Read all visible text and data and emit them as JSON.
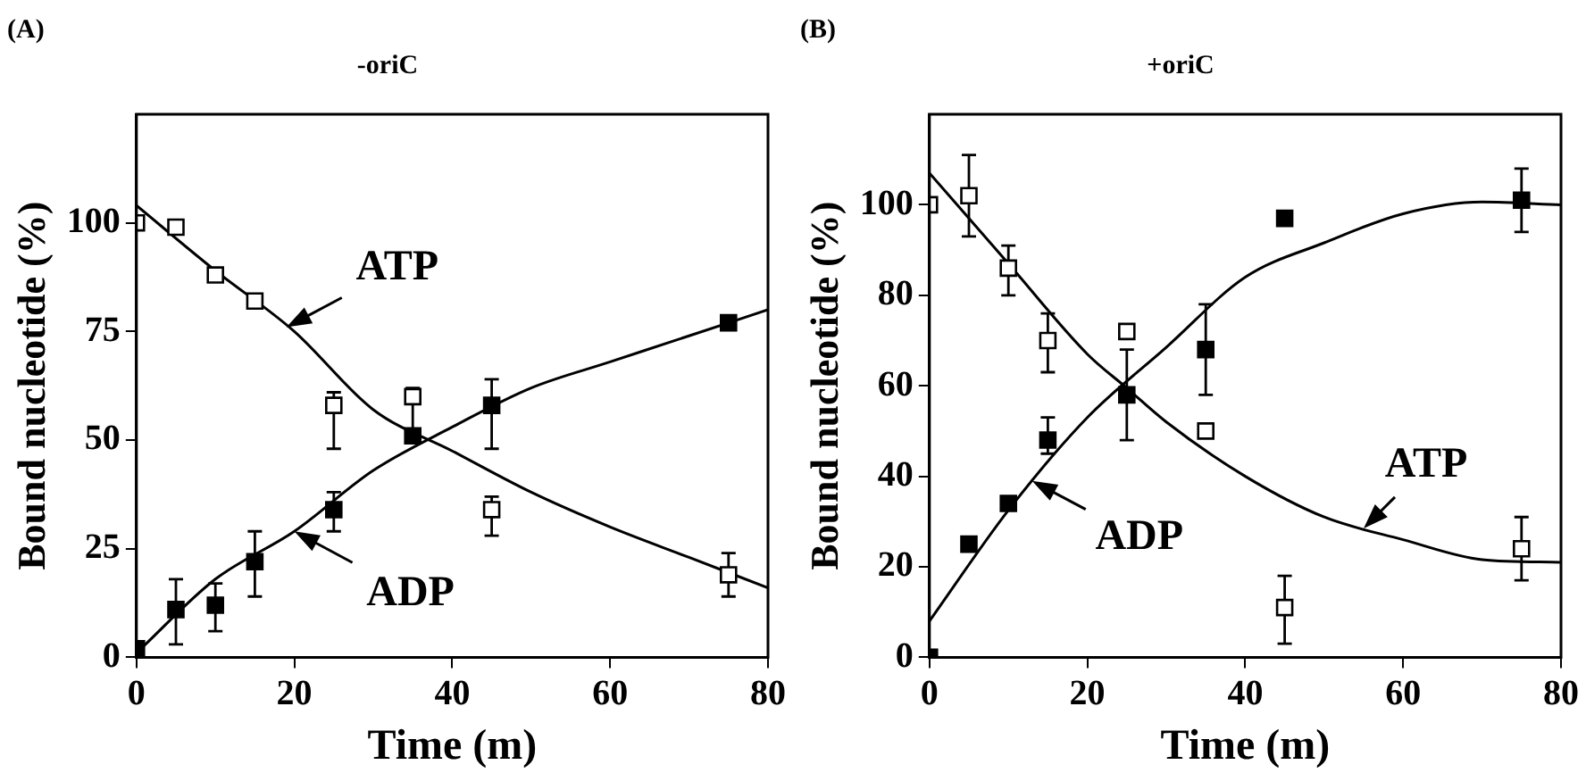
{
  "chart_data": [
    {
      "type": "scatter",
      "title": "(A)",
      "subtitle": "-oriC",
      "xlabel": "Time (m)",
      "ylabel": "Bound nucleotide (%)",
      "xlim": [
        0,
        80
      ],
      "xticks": [
        0,
        20,
        40,
        60,
        80
      ],
      "ylim": [
        0,
        125
      ],
      "yticks": [
        0,
        25,
        50,
        75,
        100
      ],
      "grid": false,
      "legend": false,
      "marker": "square",
      "series": [
        {
          "color": "#ffffff",
          "x": [
            0,
            5,
            10,
            15,
            25,
            35,
            45,
            75
          ],
          "values": [
            100,
            99,
            88,
            82,
            58,
            60,
            34,
            19
          ],
          "errors": [
            null,
            null,
            null,
            null,
            [
              48,
              61
            ],
            [
              50,
              62
            ],
            [
              28,
              37
            ],
            [
              14,
              24
            ]
          ]
        },
        {
          "color": "#000000",
          "x": [
            0,
            5,
            10,
            15,
            25,
            35,
            45,
            75
          ],
          "values": [
            2,
            11,
            12,
            22,
            34,
            51,
            58,
            77
          ],
          "errors": [
            null,
            [
              3,
              18
            ],
            [
              6,
              17
            ],
            [
              14,
              29
            ],
            [
              29,
              38
            ],
            null,
            [
              48,
              64
            ],
            null
          ]
        },
        {
          "type": "line",
          "marker": "none",
          "line_style": "solid",
          "color": "#000000",
          "x": [
            0,
            10,
            20,
            30,
            40,
            50,
            60,
            70,
            80
          ],
          "values": [
            104,
            89,
            75,
            57,
            47.5,
            38,
            30,
            23,
            16
          ]
        },
        {
          "type": "line",
          "marker": "none",
          "line_style": "solid",
          "color": "#000000",
          "x": [
            0,
            10,
            20,
            30,
            40,
            50,
            60,
            70,
            80
          ],
          "values": [
            1,
            18,
            29,
            43,
            53,
            62,
            68,
            74,
            80
          ]
        }
      ],
      "annotations": [
        {
          "text": "ATP",
          "x": 19,
          "y": 76
        },
        {
          "text": "ADP",
          "x": 20,
          "y": 29
        }
      ]
    },
    {
      "type": "scatter",
      "title": "(B)",
      "subtitle": "+oriC",
      "xlabel": "Time (m)",
      "ylabel": "Bound nucleotide (%)",
      "xlim": [
        0,
        80
      ],
      "xticks": [
        0,
        20,
        40,
        60,
        80
      ],
      "ylim": [
        0,
        120
      ],
      "yticks": [
        0,
        20,
        40,
        60,
        80,
        100
      ],
      "grid": false,
      "legend": false,
      "marker": "square",
      "series": [
        {
          "color": "#ffffff",
          "x": [
            0,
            5,
            10,
            15,
            25,
            35,
            45,
            75
          ],
          "values": [
            100,
            102,
            86,
            70,
            72,
            50,
            11,
            24
          ],
          "errors": [
            null,
            [
              93,
              111
            ],
            [
              80,
              91
            ],
            [
              63,
              76
            ],
            null,
            null,
            [
              3,
              18
            ],
            [
              17,
              31
            ]
          ]
        },
        {
          "color": "#000000",
          "x": [
            0,
            5,
            10,
            15,
            25,
            35,
            45,
            75
          ],
          "values": [
            0,
            25,
            34,
            48,
            58,
            68,
            97,
            101
          ],
          "errors": [
            null,
            null,
            null,
            [
              45,
              53
            ],
            [
              48,
              68
            ],
            [
              58,
              78
            ],
            null,
            [
              94,
              108
            ]
          ]
        },
        {
          "type": "line",
          "marker": "none",
          "line_style": "solid",
          "color": "#000000",
          "x": [
            0,
            10,
            20,
            25,
            30,
            40,
            50,
            60,
            70,
            80
          ],
          "values": [
            107,
            87,
            67,
            59.5,
            52,
            40,
            31,
            26,
            21.6,
            21
          ]
        },
        {
          "type": "line",
          "marker": "none",
          "line_style": "solid",
          "color": "#000000",
          "x": [
            0,
            10,
            20,
            30,
            40,
            50,
            60,
            70,
            80
          ],
          "values": [
            8,
            32.5,
            53,
            68.5,
            84,
            91.6,
            98,
            100.6,
            100
          ]
        }
      ],
      "annotations": [
        {
          "text": "ATP",
          "x": 55,
          "y": 28.5
        },
        {
          "text": "ADP",
          "x": 13,
          "y": 39
        }
      ]
    }
  ]
}
